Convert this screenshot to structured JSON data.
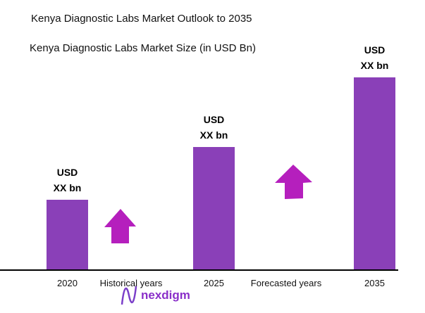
{
  "chart_data": {
    "type": "bar",
    "title": "Kenya Diagnostic Labs Market Outlook to 2035",
    "subtitle": "Kenya Diagnostic Labs Market Size (in USD Bn)",
    "categories": [
      "2020",
      "2025",
      "2035"
    ],
    "values": [
      1,
      1.75,
      2.74
    ],
    "data_labels": [
      [
        "USD",
        "XX bn"
      ],
      [
        "USD",
        "XX bn"
      ],
      [
        "USD",
        "XX bn"
      ]
    ],
    "period_labels": [
      "Historical years",
      "Forecasted years"
    ],
    "bar_color": "#8a40b8",
    "arrow_color": "#b51fbd",
    "grid": false
  },
  "logo": {
    "text": "nexdigm"
  }
}
